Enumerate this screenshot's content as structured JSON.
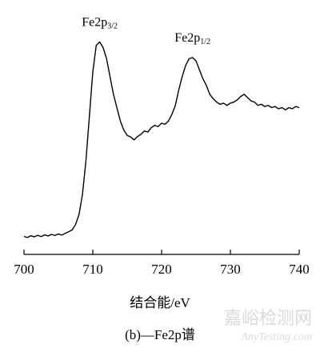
{
  "chart_data": {
    "type": "line",
    "annotations": [
      {
        "text": "Fe2p",
        "sub": "3/2",
        "x": 711
      },
      {
        "text": "Fe2p",
        "sub": "1/2",
        "x": 724.5
      }
    ],
    "xlabel": "结合能/eV",
    "caption": "(b)—Fe2p谱",
    "watermark": "嘉峪检测网",
    "watermark_url": "AnyTesting.com",
    "color": "#000000",
    "x": [
      700,
      700.5,
      701,
      701.5,
      702,
      702.5,
      703,
      703.5,
      704,
      704.5,
      705,
      705.5,
      706,
      706.5,
      707,
      707.5,
      708,
      708.5,
      709,
      709.5,
      710,
      710.5,
      711,
      711.5,
      712,
      712.5,
      713,
      713.5,
      714,
      714.5,
      715,
      715.5,
      716,
      716.5,
      717,
      717.5,
      718,
      718.5,
      719,
      719.5,
      720,
      720.5,
      721,
      721.5,
      722,
      722.5,
      723,
      723.5,
      724,
      724.5,
      725,
      725.5,
      726,
      726.5,
      727,
      727.5,
      728,
      728.5,
      729,
      729.5,
      730,
      730.5,
      731,
      731.5,
      732,
      732.5,
      733,
      733.5,
      734,
      734.5,
      735,
      735.5,
      736,
      736.5,
      737,
      737.5,
      738,
      738.5,
      739,
      739.5,
      740
    ],
    "values": [
      8.1,
      7.6,
      8.4,
      7.9,
      8.6,
      8.0,
      8.8,
      8.3,
      9.0,
      8.5,
      9.2,
      8.7,
      9.5,
      10.2,
      11,
      13.5,
      18,
      27,
      42,
      62,
      82,
      94,
      95.5,
      93,
      88,
      80,
      72,
      66,
      60,
      56,
      53.5,
      52.8,
      51.5,
      53,
      54,
      55.5,
      55,
      57,
      58,
      57.5,
      59,
      58.5,
      60,
      63,
      67,
      74,
      80,
      85,
      88,
      88.5,
      87,
      83,
      79,
      76,
      72,
      70,
      68.5,
      67.5,
      68,
      67,
      68,
      68.5,
      69.5,
      71,
      72,
      70.5,
      69,
      68.5,
      67,
      67.5,
      66.5,
      67,
      66,
      66.5,
      65.5,
      66,
      65,
      66,
      65.5,
      66.5,
      66
    ],
    "xlim": [
      700,
      740
    ],
    "xticks": [
      700,
      710,
      720,
      730,
      740
    ],
    "ylim": [
      0,
      100
    ]
  }
}
